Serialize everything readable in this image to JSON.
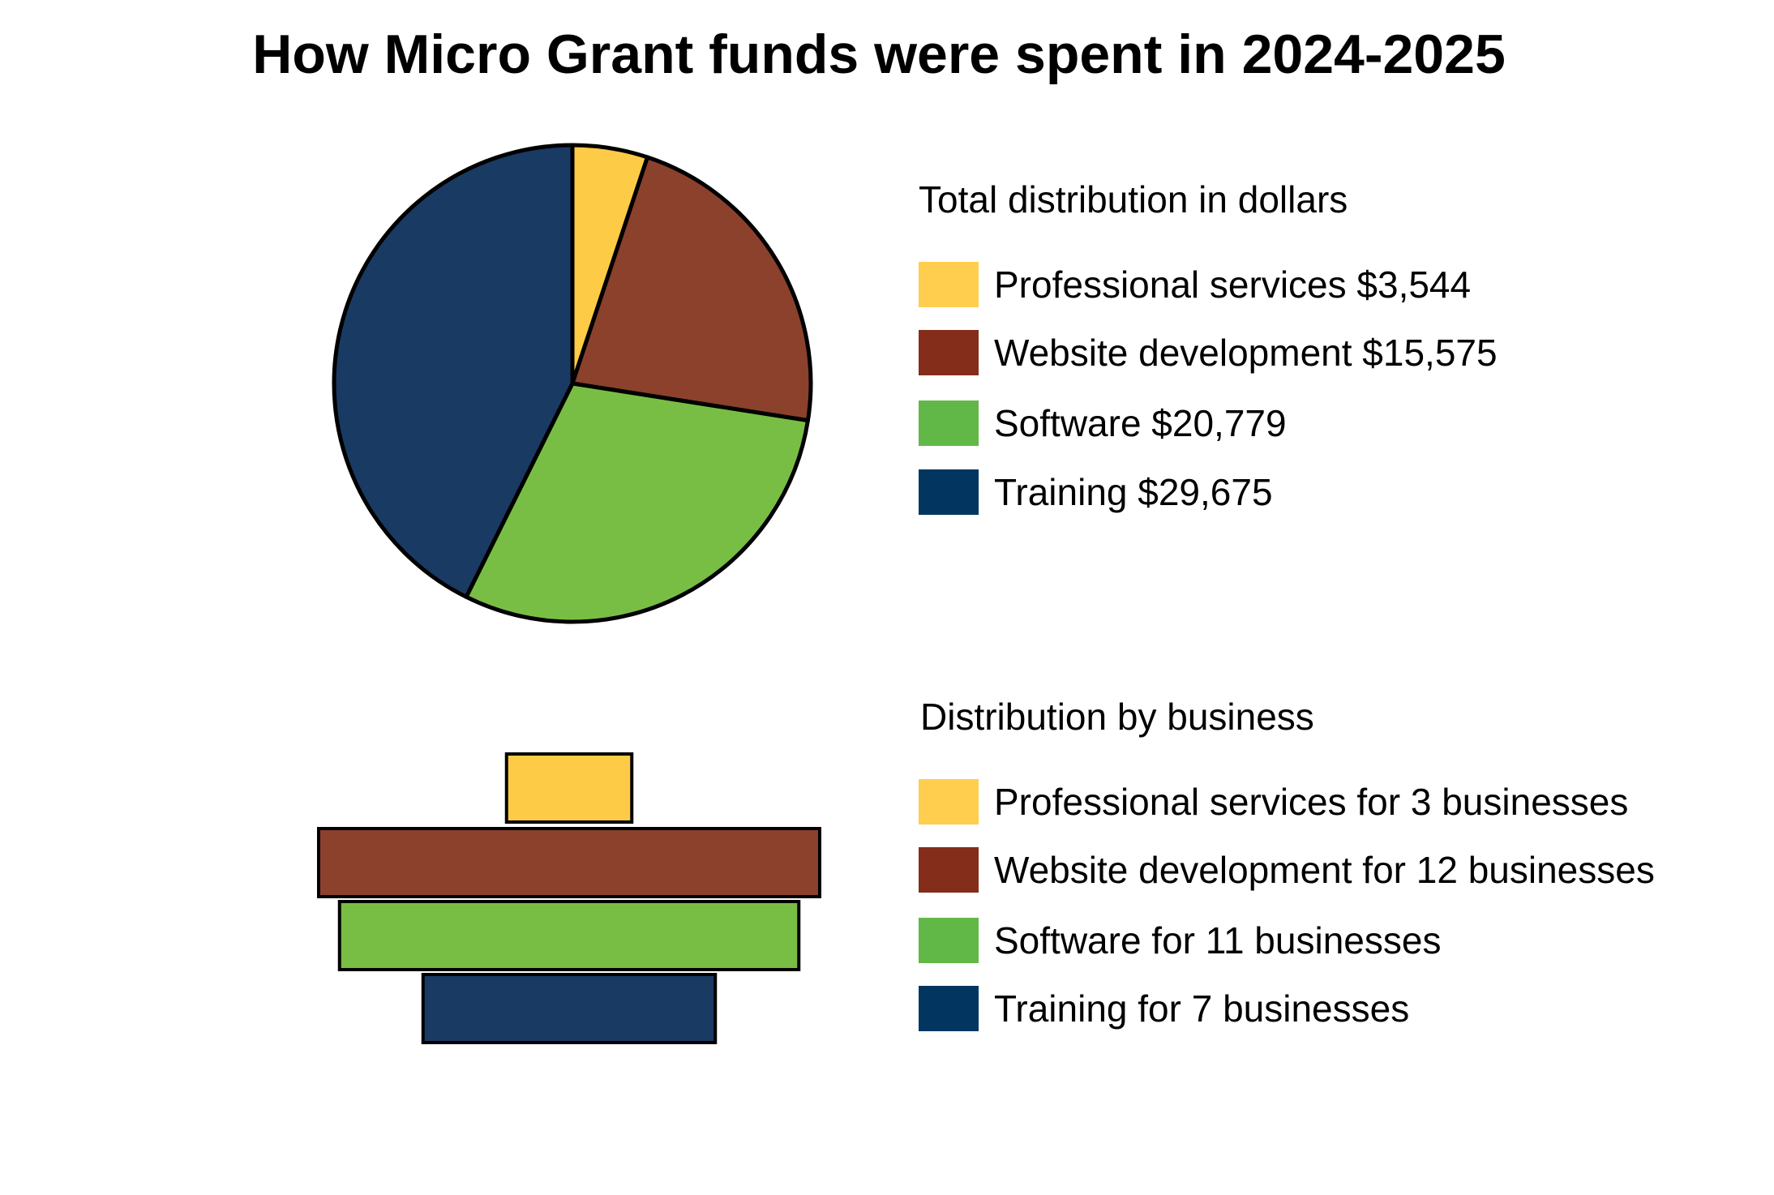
{
  "chart_data": [
    {
      "type": "pie",
      "title": "How Micro Grant funds were spent in 2024-2025",
      "legend_title": "Total distribution in dollars",
      "legend_placement": "right",
      "categories": [
        "Professional services",
        "Website development",
        "Software",
        "Training"
      ],
      "values": [
        3544,
        15575,
        20779,
        29675
      ],
      "legend_labels": [
        "Professional services $3,544",
        "Website development $15,575",
        "Software $20,779",
        "Training $29,675"
      ],
      "colors": [
        "#FECB47",
        "#8B412C",
        "#79BE44",
        "#193A62"
      ],
      "legend_colors": [
        "#FFCE4F",
        "#832D1A",
        "#62B847",
        "#023660"
      ]
    },
    {
      "type": "bar",
      "orientation": "horizontal-centered",
      "legend_title": "Distribution by business",
      "legend_placement": "right",
      "categories": [
        "Professional services",
        "Website development",
        "Software",
        "Training"
      ],
      "values": [
        3,
        12,
        11,
        7
      ],
      "legend_labels": [
        "Professional services for 3 businesses",
        "Website development for 12 businesses",
        "Software for 11 businesses",
        "Training for 7 businesses"
      ],
      "colors": [
        "#FECB47",
        "#8B412C",
        "#79BE44",
        "#193A62"
      ],
      "legend_colors": [
        "#FFCE4F",
        "#832D1A",
        "#62B847",
        "#023660"
      ]
    }
  ]
}
